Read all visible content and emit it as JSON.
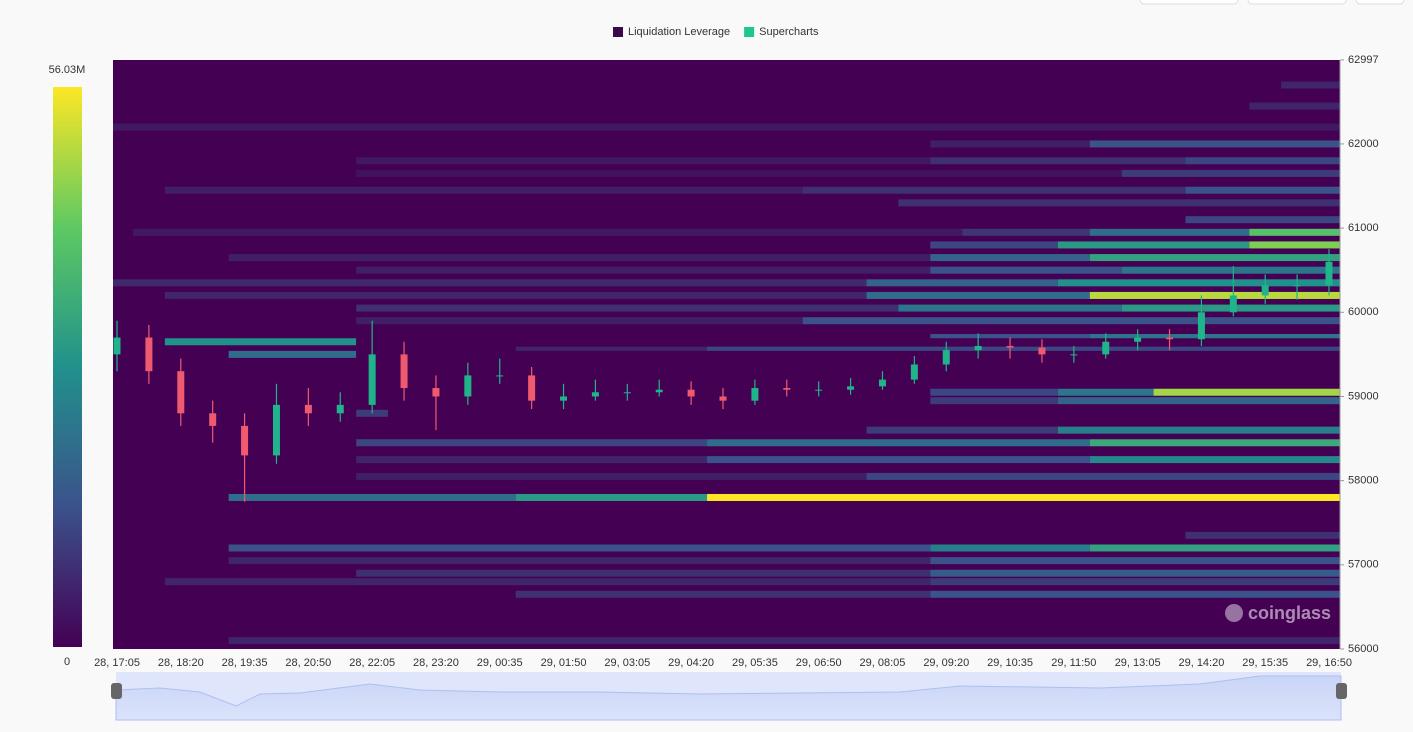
{
  "chart_data": {
    "type": "heatmap",
    "series": [
      {
        "name": "Liquidation Leverage",
        "color": "#3b0a4a"
      },
      {
        "name": "Supercharts",
        "color": "#1bc98e",
        "up_color": "#20b48a",
        "down_color": "#ef5a6f",
        "open": [
          59500,
          59700,
          59300,
          58800,
          58650,
          58300,
          58900,
          58800,
          58900,
          59500,
          59100,
          59000,
          59250,
          59250,
          58950,
          59000,
          59050,
          59050,
          59080,
          59000,
          58950,
          59100,
          59080,
          59080,
          59120,
          59200,
          59380,
          59550,
          59600,
          59580,
          59500,
          59500,
          59650,
          59700,
          59680,
          60000,
          60200,
          60320,
          60320
        ],
        "high": [
          59900,
          59850,
          59450,
          58950,
          58800,
          59150,
          59100,
          59050,
          59900,
          59650,
          59250,
          59400,
          59450,
          59350,
          59150,
          59200,
          59150,
          59200,
          59180,
          59100,
          59200,
          59200,
          59180,
          59220,
          59300,
          59480,
          59650,
          59750,
          59700,
          59680,
          59600,
          59750,
          59800,
          59800,
          60200,
          60550,
          60450,
          60450,
          60750
        ],
        "low": [
          59300,
          59150,
          58650,
          58450,
          57750,
          58200,
          58650,
          58700,
          58800,
          58950,
          58600,
          58900,
          59150,
          58850,
          58850,
          58950,
          58950,
          59000,
          58900,
          58850,
          58900,
          59000,
          59000,
          59020,
          59080,
          59150,
          59300,
          59450,
          59450,
          59400,
          59400,
          59450,
          59550,
          59550,
          59600,
          59950,
          60100,
          60150,
          60200
        ],
        "close": [
          59700,
          59300,
          58800,
          58650,
          58300,
          58900,
          58800,
          58900,
          59500,
          59100,
          59000,
          59250,
          59250,
          58950,
          59000,
          59050,
          59050,
          59080,
          59000,
          58950,
          59100,
          59080,
          59080,
          59120,
          59200,
          59380,
          59550,
          59600,
          59580,
          59500,
          59500,
          59650,
          59700,
          59680,
          60000,
          60200,
          60320,
          60320,
          60600
        ]
      }
    ],
    "categories": [
      "28, 17:05",
      null,
      "28, 18:20",
      null,
      "28, 19:35",
      null,
      "28, 20:50",
      null,
      "28, 22:05",
      null,
      "28, 23:20",
      null,
      "29, 00:35",
      null,
      "29, 01:50",
      null,
      "29, 03:05",
      null,
      "29, 04:20",
      null,
      "29, 05:35",
      null,
      "29, 06:50",
      null,
      "29, 08:05",
      null,
      "29, 09:20",
      null,
      "29, 10:35",
      null,
      "29, 11:50",
      null,
      "29, 13:05",
      null,
      "29, 14:20",
      null,
      "29, 15:35",
      null,
      "29, 16:50"
    ],
    "ylim": [
      56000,
      62997
    ],
    "yticks": [
      56000,
      57000,
      58000,
      59000,
      60000,
      61000,
      62000,
      62997
    ],
    "zlim": [
      0,
      56030000
    ],
    "zticks": [
      0,
      {
        "value": 56030000,
        "label": "56.03M"
      }
    ],
    "heatmap": [
      {
        "price": 62700,
        "segments": [
          {
            "start": 37,
            "value": 6000000
          }
        ]
      },
      {
        "price": 62450,
        "segments": [
          {
            "start": 36,
            "value": 6000000
          }
        ]
      },
      {
        "price": 62200,
        "segments": [
          {
            "start": 0,
            "value": 4000000
          }
        ]
      },
      {
        "price": 62000,
        "segments": [
          {
            "start": 26,
            "value": 5000000
          },
          {
            "start": 31,
            "value": 14000000
          }
        ]
      },
      {
        "price": 61800,
        "segments": [
          {
            "start": 8,
            "value": 4000000
          },
          {
            "start": 26,
            "value": 8000000
          },
          {
            "start": 34,
            "value": 12000000
          }
        ]
      },
      {
        "price": 61650,
        "segments": [
          {
            "start": 8,
            "value": 3000000
          },
          {
            "start": 32,
            "value": 10000000
          }
        ]
      },
      {
        "price": 61450,
        "segments": [
          {
            "start": 2,
            "value": 5000000
          },
          {
            "start": 22,
            "value": 8000000
          },
          {
            "start": 34,
            "value": 14000000
          }
        ]
      },
      {
        "price": 61300,
        "segments": [
          {
            "start": 25,
            "value": 8000000
          }
        ]
      },
      {
        "price": 61100,
        "segments": [
          {
            "start": 34,
            "value": 12000000
          }
        ]
      },
      {
        "price": 60950,
        "segments": [
          {
            "start": 1,
            "value": 4000000
          },
          {
            "start": 27,
            "value": 9000000
          },
          {
            "start": 31,
            "value": 20000000
          },
          {
            "start": 36,
            "value": 40000000
          }
        ]
      },
      {
        "price": 60800,
        "segments": [
          {
            "start": 26,
            "value": 12000000
          },
          {
            "start": 30,
            "value": 30000000
          },
          {
            "start": 36,
            "value": 45000000
          }
        ]
      },
      {
        "price": 60650,
        "segments": [
          {
            "start": 4,
            "value": 5000000
          },
          {
            "start": 26,
            "value": 18000000
          },
          {
            "start": 31,
            "value": 32000000
          }
        ]
      },
      {
        "price": 60500,
        "segments": [
          {
            "start": 8,
            "value": 5000000
          },
          {
            "start": 26,
            "value": 14000000
          },
          {
            "start": 32,
            "value": 22000000
          }
        ]
      },
      {
        "price": 60350,
        "segments": [
          {
            "start": 0,
            "value": 7000000
          },
          {
            "start": 24,
            "value": 18000000
          },
          {
            "start": 30,
            "value": 28000000
          }
        ]
      },
      {
        "price": 60200,
        "segments": [
          {
            "start": 2,
            "value": 6000000
          },
          {
            "start": 24,
            "value": 20000000
          },
          {
            "start": 31,
            "value": 50000000
          }
        ]
      },
      {
        "price": 60050,
        "segments": [
          {
            "start": 8,
            "value": 8000000
          },
          {
            "start": 25,
            "value": 22000000
          },
          {
            "start": 32,
            "value": 30000000
          }
        ]
      },
      {
        "price": 59900,
        "segments": [
          {
            "start": 8,
            "value": 5000000
          },
          {
            "start": 22,
            "value": 14000000
          }
        ]
      },
      {
        "price": 59700,
        "segments": [
          {
            "start": 26,
            "value": 14000000
          },
          {
            "start": 31,
            "value": 22000000
          }
        ]
      },
      {
        "price": 59650,
        "segments": [
          {
            "start": 2,
            "value": 28000000
          },
          {
            "start": 8,
            "value": 0
          }
        ]
      },
      {
        "price": 59550,
        "segments": [
          {
            "start": 13,
            "value": 6000000
          },
          {
            "start": 19,
            "value": 12000000
          }
        ]
      },
      {
        "price": 59500,
        "segments": [
          {
            "start": 4,
            "value": 20000000
          },
          {
            "start": 8,
            "value": 0
          }
        ]
      },
      {
        "price": 59050,
        "segments": [
          {
            "start": 26,
            "value": 12000000
          },
          {
            "start": 30,
            "value": 22000000
          },
          {
            "start": 33,
            "value": 48000000
          }
        ]
      },
      {
        "price": 58950,
        "segments": [
          {
            "start": 26,
            "value": 10000000
          },
          {
            "start": 30,
            "value": 18000000
          }
        ]
      },
      {
        "price": 58800,
        "segments": [
          {
            "start": 8,
            "value": 10000000
          },
          {
            "start": 9,
            "value": 0
          }
        ]
      },
      {
        "price": 58600,
        "segments": [
          {
            "start": 24,
            "value": 10000000
          },
          {
            "start": 30,
            "value": 24000000
          }
        ]
      },
      {
        "price": 58450,
        "segments": [
          {
            "start": 8,
            "value": 12000000
          },
          {
            "start": 19,
            "value": 20000000
          },
          {
            "start": 31,
            "value": 34000000
          }
        ]
      },
      {
        "price": 58250,
        "segments": [
          {
            "start": 8,
            "value": 6000000
          },
          {
            "start": 19,
            "value": 14000000
          },
          {
            "start": 31,
            "value": 26000000
          }
        ]
      },
      {
        "price": 58050,
        "segments": [
          {
            "start": 8,
            "value": 5000000
          },
          {
            "start": 24,
            "value": 12000000
          }
        ]
      },
      {
        "price": 57800,
        "segments": [
          {
            "start": 4,
            "value": 20000000
          },
          {
            "start": 13,
            "value": 30000000
          },
          {
            "start": 19,
            "value": 56000000
          }
        ]
      },
      {
        "price": 57350,
        "segments": [
          {
            "start": 34,
            "value": 8000000
          }
        ]
      },
      {
        "price": 57200,
        "segments": [
          {
            "start": 4,
            "value": 14000000
          },
          {
            "start": 26,
            "value": 24000000
          },
          {
            "start": 31,
            "value": 32000000
          }
        ]
      },
      {
        "price": 57050,
        "segments": [
          {
            "start": 4,
            "value": 6000000
          },
          {
            "start": 26,
            "value": 14000000
          }
        ]
      },
      {
        "price": 56900,
        "segments": [
          {
            "start": 8,
            "value": 8000000
          },
          {
            "start": 26,
            "value": 16000000
          }
        ]
      },
      {
        "price": 56800,
        "segments": [
          {
            "start": 2,
            "value": 6000000
          },
          {
            "start": 26,
            "value": 10000000
          }
        ]
      },
      {
        "price": 56650,
        "segments": [
          {
            "start": 13,
            "value": 8000000
          },
          {
            "start": 26,
            "value": 14000000
          }
        ]
      },
      {
        "price": 56100,
        "segments": [
          {
            "start": 4,
            "value": 6000000
          }
        ]
      }
    ],
    "watermark": "coinglass"
  }
}
